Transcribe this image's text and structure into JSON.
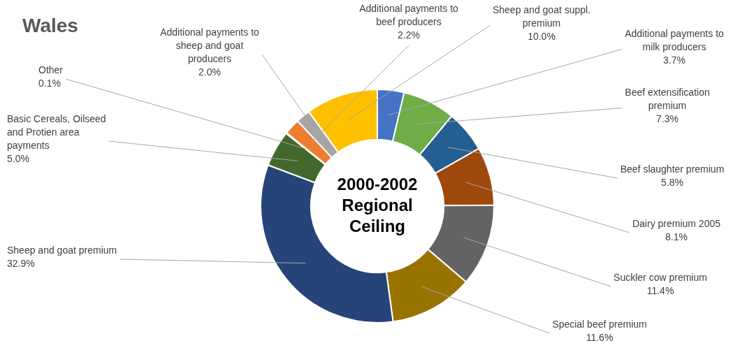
{
  "chart_data": {
    "type": "donut",
    "title": "Wales",
    "legend": false,
    "data_labels": true,
    "categories": [
      "Additional payments to milk producers",
      "Beef extensification premium",
      "Beef slaughter premium",
      "Dairy premium 2005",
      "Suckler cow premium",
      "Special beef premium",
      "Sheep and goat premium",
      "Basic Cereals, Oilseed and Protien area payments",
      "Other",
      "Additional payments to beef producers",
      "Additional payments to sheep and goat producers",
      "Sheep and goat suppl. premium"
    ],
    "values": [
      3.7,
      7.3,
      5.8,
      8.1,
      11.4,
      11.6,
      32.9,
      5.0,
      0.1,
      2.2,
      2.0,
      10.0
    ],
    "value_labels": [
      "3.7%",
      "7.3%",
      "5.8%",
      "8.1%",
      "11.4%",
      "11.6%",
      "32.9%",
      "5.0%",
      "0.1%",
      "2.2%",
      "2.0%",
      "10.0%"
    ],
    "colors": [
      "#4472c4",
      "#70ad47",
      "#255e91",
      "#9e480e",
      "#636363",
      "#997300",
      "#264478",
      "#43682b",
      "#698ed0",
      "#ed7d31",
      "#a5a5a5",
      "#ffc000"
    ],
    "annotations": [
      "2000-2002 Regional Ceiling"
    ]
  }
}
